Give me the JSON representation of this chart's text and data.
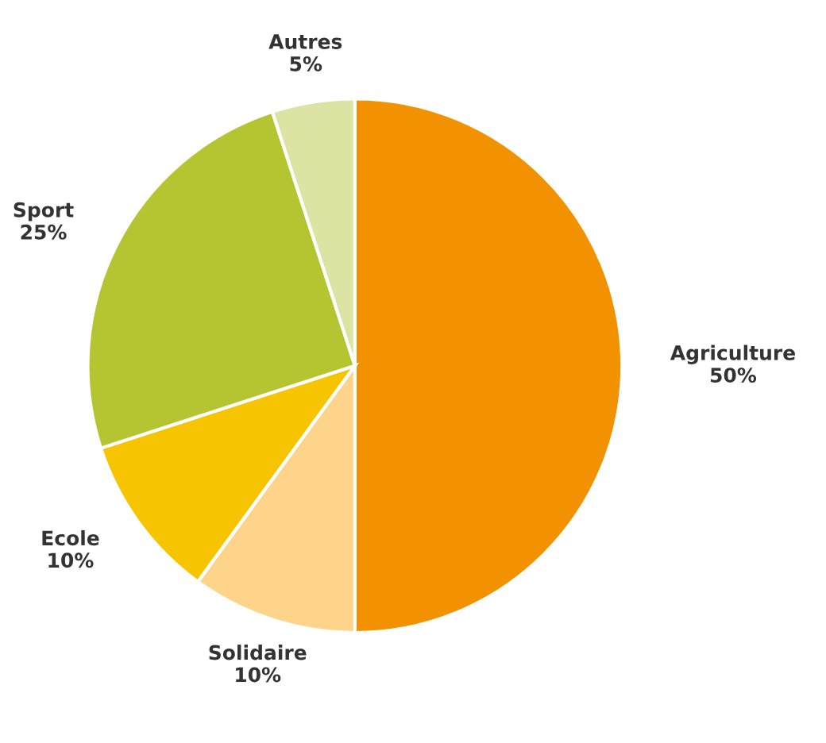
{
  "chart_data": {
    "type": "pie",
    "categories": [
      "Agriculture",
      "Solidaire",
      "Ecole",
      "Sport",
      "Autres"
    ],
    "values": [
      50,
      10,
      10,
      25,
      5
    ],
    "value_labels": [
      "50%",
      "10%",
      "10%",
      "25%",
      "5%"
    ],
    "colors": [
      "#f39200",
      "#fdd48a",
      "#f6c400",
      "#b5c531",
      "#dce3a3"
    ],
    "legend": false
  }
}
